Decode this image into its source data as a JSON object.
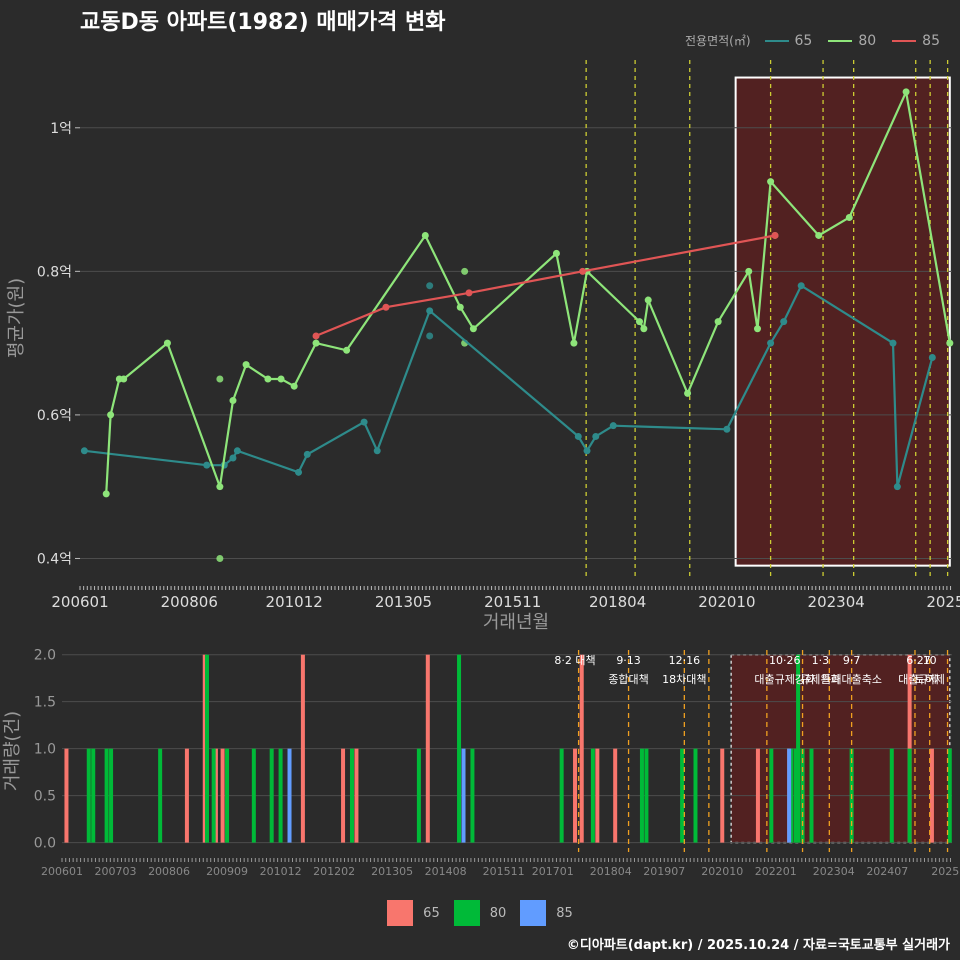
{
  "title": "교동D동 아파트(1982) 매매가격 변화",
  "footer": "©디아파트(dapt.kr) / 2025.10.24 / 자료=국토교통부 실거래가",
  "legend_title": "전용면적(㎡)",
  "colors": {
    "background": "#2b2b2b",
    "grid": "#4d4d4d",
    "line_65": "#2e8b8b",
    "line_80": "#8ee57a",
    "line_85": "#e05555",
    "bar_65": "#f8766d",
    "bar_80": "#00ba38",
    "bar_85": "#619cff",
    "policy_top": "#cccc33",
    "policy_bottom": "#f0a020",
    "highlight_fill": "#5c1f1f",
    "text_axis": "#dddddd",
    "text_axis_bottom": "#888888"
  },
  "chart_data": [
    {
      "type": "line",
      "name": "price",
      "title": "교동D동 아파트(1982) 매매가격 변화",
      "xlabel": "거래년월",
      "ylabel": "평균가(원)",
      "xlim": [
        2006.0,
        2025.95
      ],
      "ylim": [
        0.37,
        1.1
      ],
      "x_ticks": [
        2006.0,
        2008.5,
        2010.9,
        2013.4,
        2015.9,
        2018.3,
        2020.8,
        2023.3,
        2025.8
      ],
      "x_tick_labels": [
        "200601",
        "200806",
        "201012",
        "201305",
        "201511",
        "201804",
        "202010",
        "202304",
        "2025"
      ],
      "y_ticks": [
        0.4,
        0.6,
        0.8,
        1.0
      ],
      "y_tick_labels": [
        "0.4억",
        "0.6억",
        "0.8억",
        "1억"
      ],
      "highlight_range": [
        2021.0,
        2025.9
      ],
      "policy_lines": [
        2017.58,
        2018.7,
        2019.95,
        2021.8,
        2023.0,
        2023.7,
        2025.12,
        2025.45,
        2025.85
      ],
      "series": [
        {
          "name": "65",
          "points": [
            [
              2006.1,
              0.55
            ],
            [
              2008.9,
              0.53
            ],
            [
              2009.3,
              0.53
            ],
            [
              2009.5,
              0.54
            ],
            [
              2009.6,
              0.55
            ],
            [
              2011.0,
              0.52
            ],
            [
              2011.2,
              0.545
            ],
            [
              2012.5,
              0.59
            ],
            [
              2012.8,
              0.55
            ],
            [
              2014.0,
              0.745
            ],
            [
              2017.4,
              0.57
            ],
            [
              2017.6,
              0.55
            ],
            [
              2017.8,
              0.57
            ],
            [
              2018.2,
              0.585
            ],
            [
              2020.8,
              0.58
            ],
            [
              2021.8,
              0.7
            ],
            [
              2022.1,
              0.73
            ],
            [
              2022.5,
              0.78
            ],
            [
              2024.6,
              0.7
            ],
            [
              2024.7,
              0.5
            ],
            [
              2025.5,
              0.68
            ]
          ]
        },
        {
          "name": "80",
          "points": [
            [
              2006.6,
              0.49
            ],
            [
              2006.7,
              0.6
            ],
            [
              2006.9,
              0.65
            ],
            [
              2007.0,
              0.65
            ],
            [
              2008.0,
              0.7
            ],
            [
              2009.2,
              0.5
            ],
            [
              2009.5,
              0.62
            ],
            [
              2009.8,
              0.67
            ],
            [
              2010.3,
              0.65
            ],
            [
              2010.6,
              0.65
            ],
            [
              2010.9,
              0.64
            ],
            [
              2011.4,
              0.7
            ],
            [
              2012.1,
              0.69
            ],
            [
              2013.9,
              0.85
            ],
            [
              2014.7,
              0.75
            ],
            [
              2015.0,
              0.72
            ],
            [
              2016.9,
              0.825
            ],
            [
              2017.3,
              0.7
            ],
            [
              2017.6,
              0.8
            ],
            [
              2018.8,
              0.73
            ],
            [
              2018.9,
              0.72
            ],
            [
              2019.0,
              0.76
            ],
            [
              2019.9,
              0.63
            ],
            [
              2020.6,
              0.73
            ],
            [
              2021.3,
              0.8
            ],
            [
              2021.5,
              0.72
            ],
            [
              2021.8,
              0.925
            ],
            [
              2022.9,
              0.85
            ],
            [
              2023.6,
              0.875
            ],
            [
              2024.9,
              1.05
            ],
            [
              2025.9,
              0.7
            ]
          ]
        },
        {
          "name": "85",
          "points": [
            [
              2011.4,
              0.71
            ],
            [
              2013.0,
              0.75
            ],
            [
              2014.9,
              0.77
            ],
            [
              2017.5,
              0.8
            ],
            [
              2021.9,
              0.85
            ]
          ]
        }
      ],
      "scatter": [
        {
          "name": "65",
          "points": [
            [
              2014.0,
              0.78
            ],
            [
              2014.0,
              0.71
            ]
          ]
        },
        {
          "name": "80",
          "points": [
            [
              2009.2,
              0.4
            ],
            [
              2009.2,
              0.65
            ],
            [
              2014.8,
              0.8
            ],
            [
              2014.8,
              0.7
            ],
            [
              2021.9,
              0.85
            ]
          ]
        }
      ]
    },
    {
      "type": "bar",
      "name": "volume",
      "ylabel": "거래량(건)",
      "xlim": [
        2006.0,
        2025.95
      ],
      "ylim": [
        -0.1,
        2.05
      ],
      "y_ticks": [
        0.0,
        0.5,
        1.0,
        1.5,
        2.0
      ],
      "y_tick_labels": [
        "0.0",
        "0.5",
        "1.0",
        "1.5",
        "2.0"
      ],
      "x_ticks": [
        2006.0,
        2007.2,
        2008.4,
        2009.7,
        2010.9,
        2012.1,
        2013.4,
        2014.6,
        2015.9,
        2017.0,
        2018.3,
        2019.5,
        2020.8,
        2022.0,
        2023.3,
        2024.5,
        2025.8
      ],
      "x_tick_labels": [
        "200601",
        "200703",
        "200806",
        "200909",
        "201012",
        "201202",
        "201305",
        "201408",
        "201511",
        "201701",
        "201804",
        "201907",
        "202010",
        "202201",
        "202304",
        "202407",
        "2025"
      ],
      "highlight_range": [
        2021.0,
        2025.9
      ],
      "policy_lines": [
        2017.58,
        2018.7,
        2019.95,
        2020.5,
        2021.8,
        2022.6,
        2023.2,
        2023.7,
        2025.12,
        2025.45,
        2025.85
      ],
      "policy_labels": [
        {
          "x": 2017.5,
          "line1": "8·2 대책",
          "line2": ""
        },
        {
          "x": 2018.7,
          "line1": "9·13",
          "line2": "종합대책"
        },
        {
          "x": 2019.95,
          "line1": "12·16",
          "line2": "18차대책"
        },
        {
          "x": 2022.2,
          "line1": "10·26",
          "line2": "대출규제강화"
        },
        {
          "x": 2023.0,
          "line1": "1·3",
          "line2": "규제완화"
        },
        {
          "x": 2023.7,
          "line1": "9·7",
          "line2": "특례대출축소"
        },
        {
          "x": 2025.2,
          "line1": "6·27",
          "line2": "대출규제"
        },
        {
          "x": 2025.45,
          "line1": "10",
          "line2": "토허제"
        }
      ],
      "series": [
        {
          "name": "65",
          "bars": [
            [
              2006.1,
              1
            ],
            [
              2008.8,
              1
            ],
            [
              2009.2,
              2
            ],
            [
              2009.45,
              1
            ],
            [
              2009.6,
              1
            ],
            [
              2011.4,
              2
            ],
            [
              2012.3,
              1
            ],
            [
              2012.6,
              1
            ],
            [
              2014.2,
              2
            ],
            [
              2017.5,
              1
            ],
            [
              2017.65,
              2
            ],
            [
              2018.0,
              1
            ],
            [
              2018.4,
              1
            ],
            [
              2020.8,
              1
            ],
            [
              2021.6,
              1
            ],
            [
              2022.3,
              1
            ],
            [
              2025.0,
              2
            ],
            [
              2025.5,
              1
            ]
          ]
        },
        {
          "name": "80",
          "bars": [
            [
              2006.6,
              1
            ],
            [
              2006.7,
              1
            ],
            [
              2007.0,
              1
            ],
            [
              2007.1,
              1
            ],
            [
              2008.2,
              1
            ],
            [
              2009.25,
              2
            ],
            [
              2009.4,
              1
            ],
            [
              2009.7,
              1
            ],
            [
              2010.3,
              1
            ],
            [
              2010.7,
              1
            ],
            [
              2010.9,
              1
            ],
            [
              2012.5,
              1
            ],
            [
              2014.0,
              1
            ],
            [
              2014.9,
              2
            ],
            [
              2015.2,
              1
            ],
            [
              2017.2,
              1
            ],
            [
              2017.9,
              1
            ],
            [
              2019.0,
              1
            ],
            [
              2019.1,
              1
            ],
            [
              2019.9,
              1
            ],
            [
              2020.2,
              1
            ],
            [
              2021.9,
              1
            ],
            [
              2022.35,
              1
            ],
            [
              2022.45,
              1
            ],
            [
              2022.5,
              2
            ],
            [
              2022.6,
              1
            ],
            [
              2022.8,
              1
            ],
            [
              2023.7,
              1
            ],
            [
              2024.6,
              1
            ],
            [
              2025.0,
              1
            ],
            [
              2025.9,
              1
            ]
          ]
        },
        {
          "name": "85",
          "bars": [
            [
              2011.1,
              1
            ],
            [
              2015.0,
              1
            ],
            [
              2022.3,
              1
            ]
          ]
        }
      ]
    }
  ]
}
